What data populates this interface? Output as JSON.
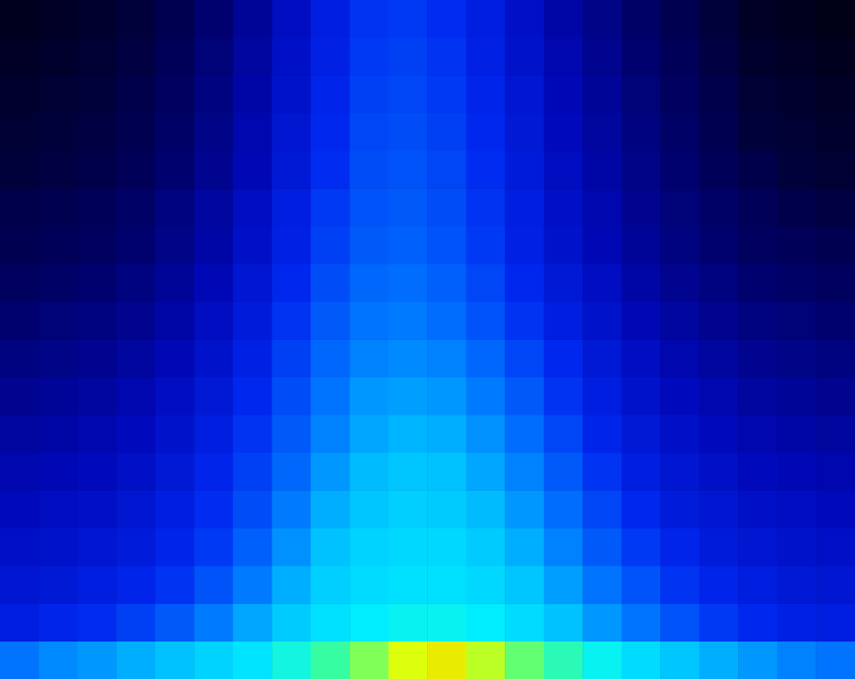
{
  "chart_data": {
    "type": "heatmap",
    "tick_labels": false,
    "zlim": [
      0,
      1
    ],
    "z": [
      [
        0.45,
        0.48,
        0.5,
        0.53,
        0.56,
        0.6,
        0.64,
        0.7,
        0.76,
        0.82,
        0.88,
        0.9,
        0.86,
        0.8,
        0.74,
        0.68,
        0.62,
        0.57,
        0.53,
        0.5,
        0.47,
        0.45
      ],
      [
        0.3,
        0.32,
        0.34,
        0.37,
        0.41,
        0.46,
        0.52,
        0.58,
        0.63,
        0.66,
        0.68,
        0.68,
        0.66,
        0.62,
        0.56,
        0.5,
        0.45,
        0.4,
        0.36,
        0.33,
        0.31,
        0.3
      ],
      [
        0.27,
        0.28,
        0.3,
        0.32,
        0.35,
        0.4,
        0.46,
        0.53,
        0.59,
        0.62,
        0.63,
        0.63,
        0.61,
        0.57,
        0.51,
        0.45,
        0.4,
        0.35,
        0.32,
        0.3,
        0.28,
        0.27
      ],
      [
        0.25,
        0.26,
        0.27,
        0.29,
        0.32,
        0.36,
        0.42,
        0.49,
        0.56,
        0.6,
        0.61,
        0.61,
        0.58,
        0.53,
        0.47,
        0.41,
        0.36,
        0.32,
        0.29,
        0.27,
        0.26,
        0.25
      ],
      [
        0.23,
        0.24,
        0.25,
        0.27,
        0.3,
        0.34,
        0.39,
        0.46,
        0.53,
        0.57,
        0.59,
        0.58,
        0.55,
        0.5,
        0.44,
        0.38,
        0.33,
        0.29,
        0.27,
        0.25,
        0.24,
        0.23
      ],
      [
        0.21,
        0.22,
        0.23,
        0.25,
        0.28,
        0.32,
        0.37,
        0.43,
        0.5,
        0.55,
        0.57,
        0.56,
        0.52,
        0.47,
        0.41,
        0.35,
        0.3,
        0.27,
        0.25,
        0.23,
        0.22,
        0.21
      ],
      [
        0.19,
        0.2,
        0.21,
        0.23,
        0.26,
        0.3,
        0.35,
        0.41,
        0.47,
        0.52,
        0.54,
        0.53,
        0.49,
        0.44,
        0.38,
        0.32,
        0.28,
        0.25,
        0.23,
        0.21,
        0.2,
        0.19
      ],
      [
        0.17,
        0.18,
        0.19,
        0.21,
        0.24,
        0.28,
        0.33,
        0.39,
        0.45,
        0.5,
        0.51,
        0.5,
        0.46,
        0.41,
        0.35,
        0.3,
        0.26,
        0.23,
        0.21,
        0.19,
        0.18,
        0.17
      ],
      [
        0.15,
        0.16,
        0.17,
        0.19,
        0.22,
        0.26,
        0.31,
        0.37,
        0.43,
        0.47,
        0.48,
        0.47,
        0.43,
        0.38,
        0.33,
        0.28,
        0.24,
        0.21,
        0.19,
        0.17,
        0.16,
        0.15
      ],
      [
        0.13,
        0.14,
        0.15,
        0.17,
        0.2,
        0.24,
        0.29,
        0.35,
        0.41,
        0.45,
        0.46,
        0.44,
        0.4,
        0.35,
        0.3,
        0.26,
        0.22,
        0.19,
        0.17,
        0.15,
        0.14,
        0.13
      ],
      [
        0.11,
        0.12,
        0.13,
        0.15,
        0.18,
        0.22,
        0.27,
        0.33,
        0.39,
        0.43,
        0.44,
        0.42,
        0.38,
        0.33,
        0.28,
        0.24,
        0.2,
        0.17,
        0.15,
        0.13,
        0.12,
        0.11
      ],
      [
        0.09,
        0.1,
        0.11,
        0.13,
        0.16,
        0.2,
        0.25,
        0.31,
        0.37,
        0.41,
        0.42,
        0.4,
        0.36,
        0.31,
        0.26,
        0.22,
        0.18,
        0.15,
        0.13,
        0.11,
        0.1,
        0.09
      ],
      [
        0.08,
        0.09,
        0.1,
        0.12,
        0.15,
        0.19,
        0.24,
        0.3,
        0.36,
        0.4,
        0.41,
        0.39,
        0.35,
        0.3,
        0.25,
        0.21,
        0.17,
        0.14,
        0.12,
        0.1,
        0.08,
        0.07
      ],
      [
        0.06,
        0.07,
        0.08,
        0.1,
        0.13,
        0.17,
        0.22,
        0.28,
        0.34,
        0.39,
        0.4,
        0.38,
        0.34,
        0.29,
        0.24,
        0.2,
        0.16,
        0.13,
        0.1,
        0.08,
        0.06,
        0.05
      ],
      [
        0.05,
        0.06,
        0.07,
        0.09,
        0.12,
        0.16,
        0.21,
        0.27,
        0.33,
        0.38,
        0.39,
        0.37,
        0.33,
        0.28,
        0.23,
        0.19,
        0.15,
        0.12,
        0.09,
        0.06,
        0.05,
        0.04
      ],
      [
        0.04,
        0.05,
        0.06,
        0.08,
        0.11,
        0.15,
        0.2,
        0.26,
        0.32,
        0.37,
        0.38,
        0.36,
        0.32,
        0.27,
        0.22,
        0.18,
        0.14,
        0.11,
        0.08,
        0.05,
        0.04,
        0.03
      ],
      [
        0.03,
        0.04,
        0.05,
        0.07,
        0.1,
        0.14,
        0.19,
        0.25,
        0.31,
        0.36,
        0.37,
        0.35,
        0.31,
        0.26,
        0.21,
        0.17,
        0.13,
        0.1,
        0.07,
        0.04,
        0.03,
        0.02
      ],
      [
        0.02,
        0.03,
        0.04,
        0.06,
        0.09,
        0.13,
        0.18,
        0.24,
        0.3,
        0.35,
        0.36,
        0.34,
        0.3,
        0.25,
        0.2,
        0.16,
        0.12,
        0.09,
        0.06,
        0.03,
        0.02,
        0.01
      ]
    ]
  }
}
